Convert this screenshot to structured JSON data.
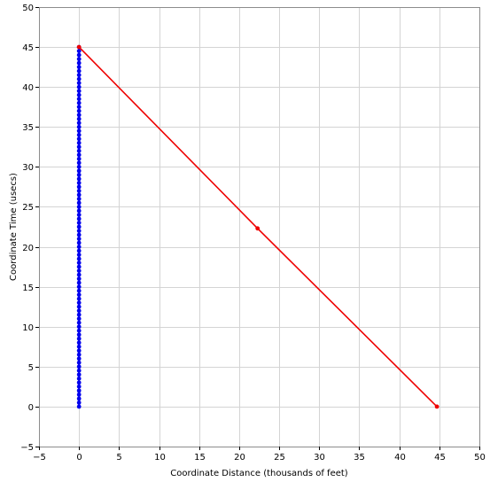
{
  "chart_data": {
    "type": "scatter",
    "title": "",
    "xlabel": "Coordinate Distance (thousands of feet)",
    "ylabel": "Coordinate Time (usecs)",
    "xlim": [
      -5,
      50
    ],
    "ylim": [
      -5,
      50
    ],
    "xticks": [
      -5,
      0,
      5,
      10,
      15,
      20,
      25,
      30,
      35,
      40,
      45,
      50
    ],
    "yticks": [
      -5,
      0,
      5,
      10,
      15,
      20,
      25,
      30,
      35,
      40,
      45,
      50
    ],
    "grid": true,
    "series": [
      {
        "color": "#0000ee",
        "line": true,
        "markers": true,
        "x": [
          0,
          0,
          0,
          0,
          0,
          0,
          0,
          0,
          0,
          0,
          0,
          0,
          0,
          0,
          0,
          0,
          0,
          0,
          0,
          0,
          0,
          0,
          0,
          0,
          0,
          0,
          0,
          0,
          0,
          0,
          0,
          0,
          0,
          0,
          0,
          0,
          0,
          0,
          0,
          0,
          0,
          0,
          0,
          0,
          0,
          0,
          0,
          0,
          0,
          0,
          0,
          0,
          0,
          0,
          0,
          0,
          0,
          0,
          0,
          0,
          0,
          0,
          0,
          0,
          0,
          0,
          0,
          0,
          0,
          0,
          0,
          0,
          0,
          0,
          0,
          0,
          0,
          0,
          0,
          0,
          0,
          0,
          0,
          0,
          0,
          0,
          0,
          0,
          0,
          0,
          0
        ],
        "y": [
          0,
          0.5,
          1,
          1.5,
          2,
          2.5,
          3,
          3.5,
          4,
          4.5,
          5,
          5.5,
          6,
          6.5,
          7,
          7.5,
          8,
          8.5,
          9,
          9.5,
          10,
          10.5,
          11,
          11.5,
          12,
          12.5,
          13,
          13.5,
          14,
          14.5,
          15,
          15.5,
          16,
          16.5,
          17,
          17.5,
          18,
          18.5,
          19,
          19.5,
          20,
          20.5,
          21,
          21.5,
          22,
          22.5,
          23,
          23.5,
          24,
          24.5,
          25,
          25.5,
          26,
          26.5,
          27,
          27.5,
          28,
          28.5,
          29,
          29.5,
          30,
          30.5,
          31,
          31.5,
          32,
          32.5,
          33,
          33.5,
          34,
          34.5,
          35,
          35.5,
          36,
          36.5,
          37,
          37.5,
          38,
          38.5,
          39,
          39.5,
          40,
          40.5,
          41,
          41.5,
          42,
          42.5,
          43,
          43.5,
          44,
          44.5,
          45
        ]
      },
      {
        "color": "#ee0000",
        "line": true,
        "markers": true,
        "x": [
          0,
          22.3,
          44.7
        ],
        "y": [
          45,
          22.3,
          0
        ]
      }
    ]
  }
}
